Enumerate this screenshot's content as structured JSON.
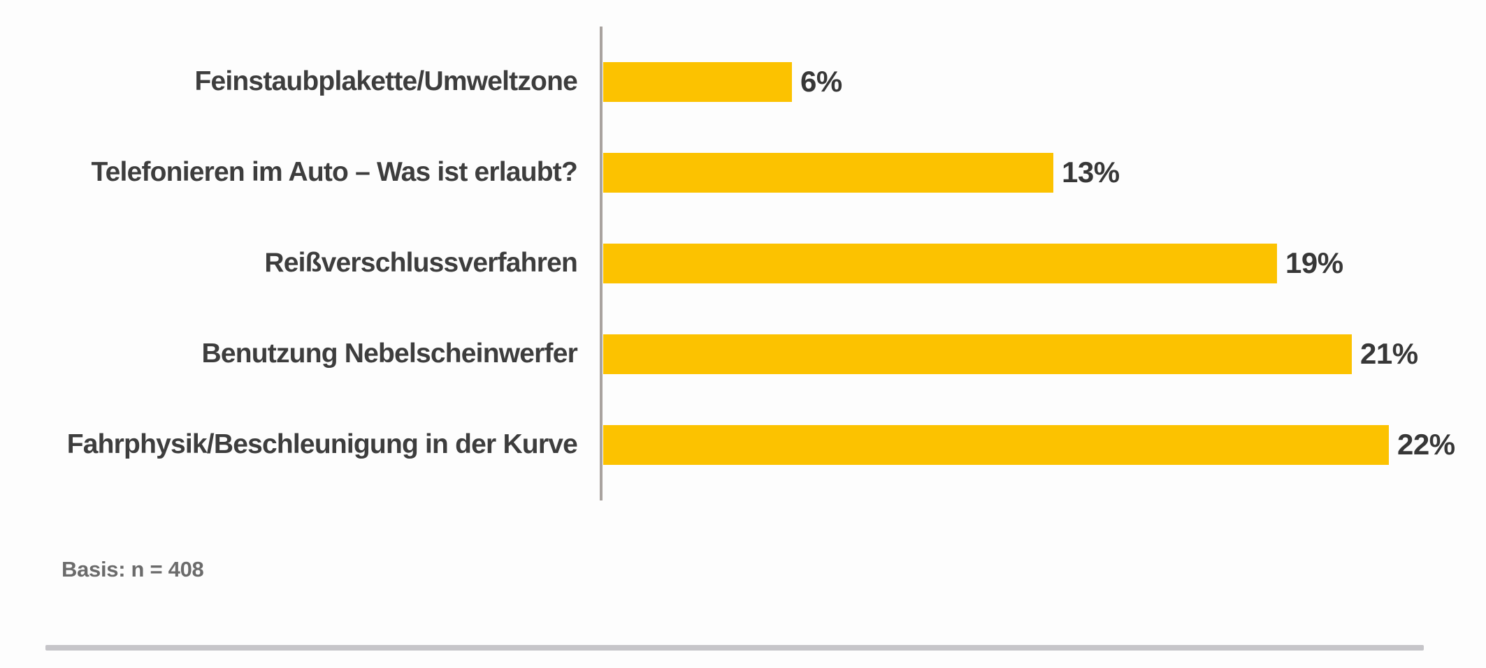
{
  "chart_data": {
    "type": "bar",
    "orientation": "horizontal",
    "title": "",
    "xlabel": "",
    "ylabel": "",
    "categories": [
      "Feinstaubplakette/Umweltzone",
      "Telefonieren im Auto – Was ist erlaubt?",
      "Reißverschlussverfahren",
      "Benutzung Nebelscheinwerfer",
      "Fahrphysik/Beschleunigung in der Kurve"
    ],
    "values": [
      6,
      13,
      19,
      21,
      22
    ],
    "value_labels": [
      "6%",
      "13%",
      "19%",
      "21%",
      "22%"
    ],
    "unit": "%",
    "xlim": [
      0,
      22
    ],
    "grid": "off",
    "legend": "none",
    "bar_color": "#fcc200",
    "axis_line_color": "#a9a39f",
    "category_label_color": "#3d3d3d",
    "value_label_color": "#373737"
  },
  "footer": {
    "basis_note": "Basis: n = 408",
    "note_color": "#6b6b6b",
    "divider_color": "#c6c5c9"
  }
}
